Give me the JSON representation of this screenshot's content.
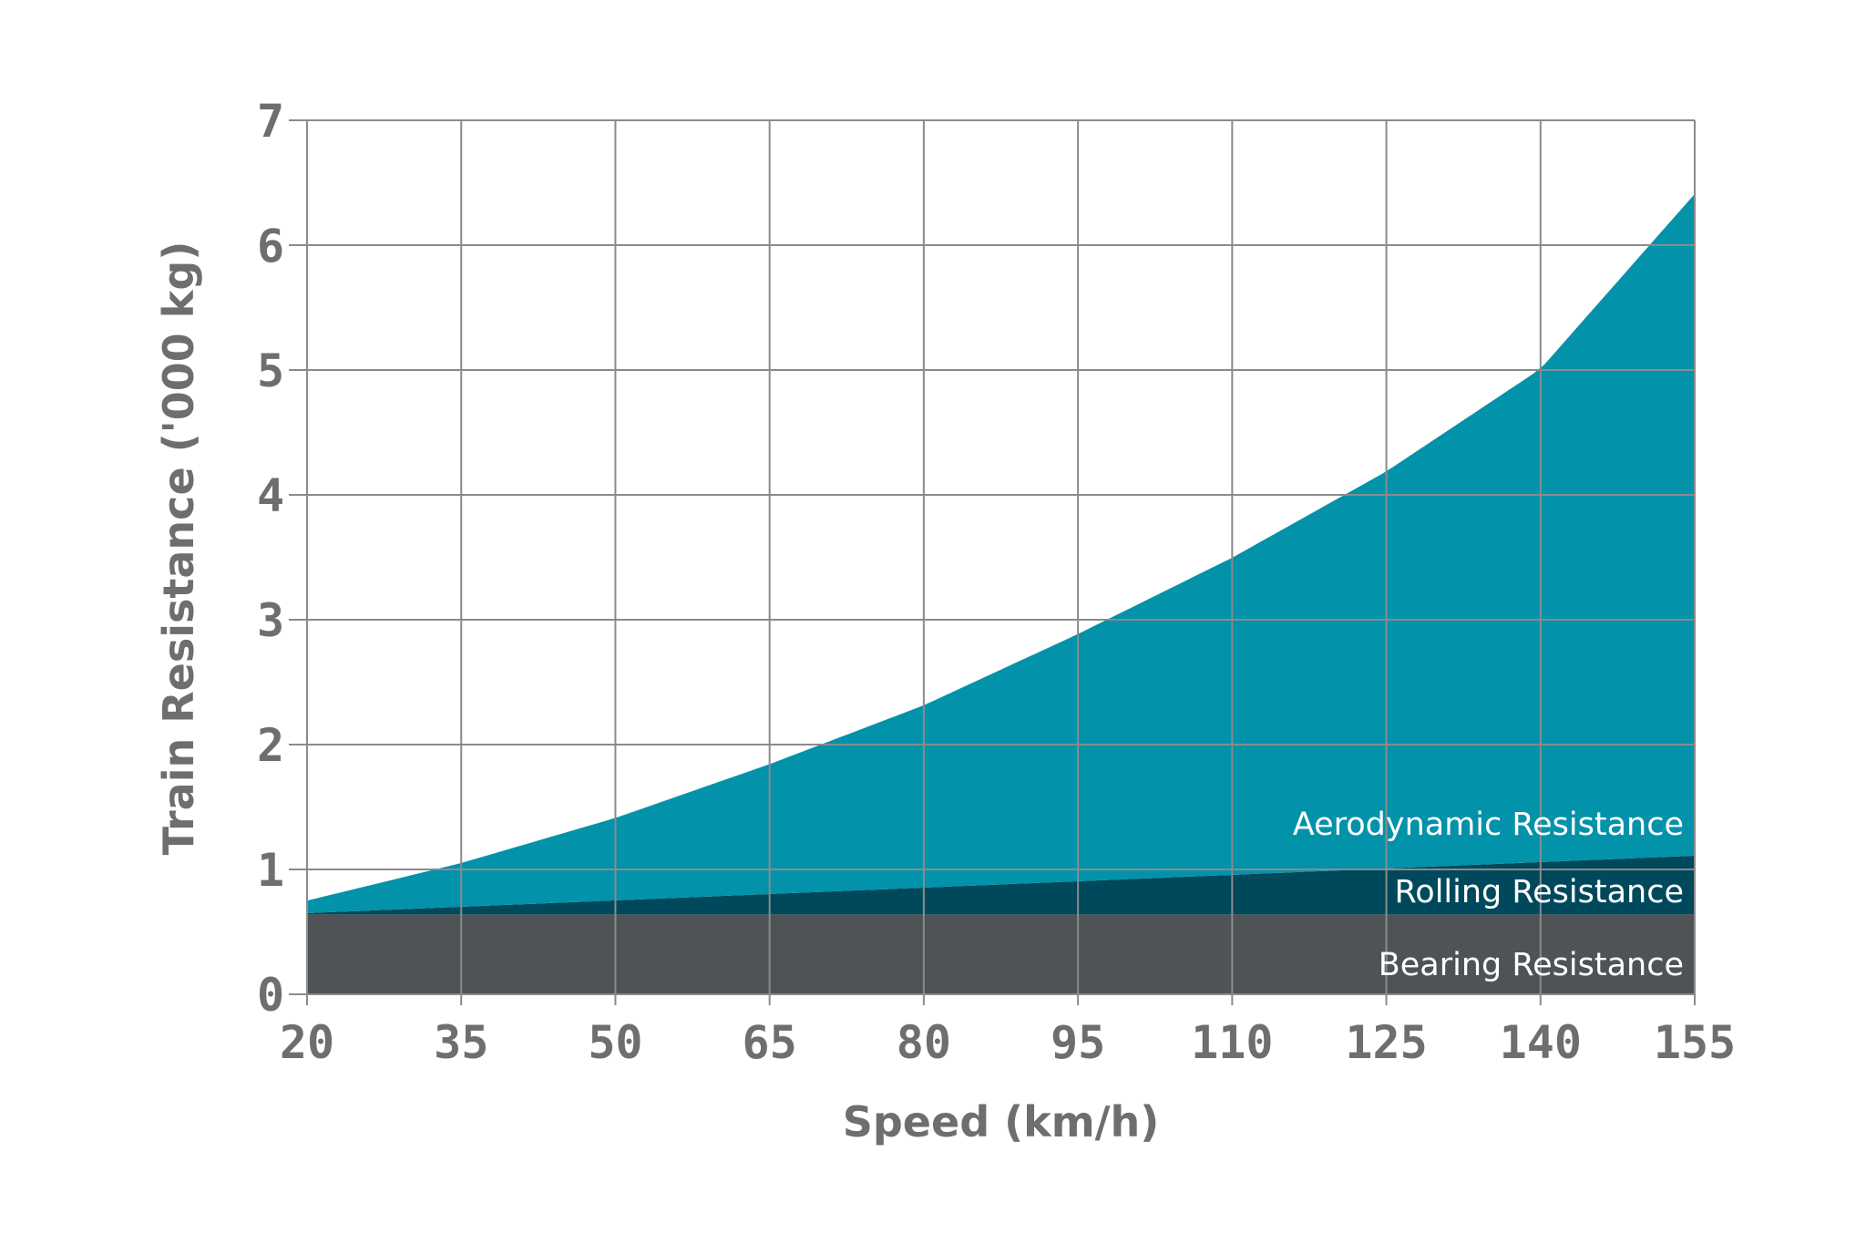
{
  "chart_data": {
    "type": "area",
    "xlabel": "Speed (km/h)",
    "ylabel": "Train Resistance ('000 kg)",
    "xlim": [
      20,
      155
    ],
    "ylim": [
      0,
      7
    ],
    "x_ticks": [
      20,
      35,
      50,
      65,
      80,
      95,
      110,
      125,
      140,
      155
    ],
    "y_ticks": [
      0,
      1,
      2,
      3,
      4,
      5,
      6,
      7
    ],
    "grid": true,
    "stacked": true,
    "series": [
      {
        "name": "Bearing Resistance",
        "color": "#4f5356",
        "x": [
          20,
          155
        ],
        "values": [
          0.64,
          0.64
        ]
      },
      {
        "name": "Rolling Resistance",
        "color": "#00495c",
        "x": [
          20,
          155
        ],
        "values": [
          0.01,
          0.47
        ]
      },
      {
        "name": "Aerodynamic Resistance",
        "color": "#0292aa",
        "x": [
          20,
          35,
          50,
          65,
          80,
          95,
          110,
          125,
          140,
          155
        ],
        "values": [
          0.1,
          0.35,
          0.66,
          1.04,
          1.46,
          1.98,
          2.54,
          3.18,
          3.95,
          5.3
        ]
      }
    ]
  }
}
